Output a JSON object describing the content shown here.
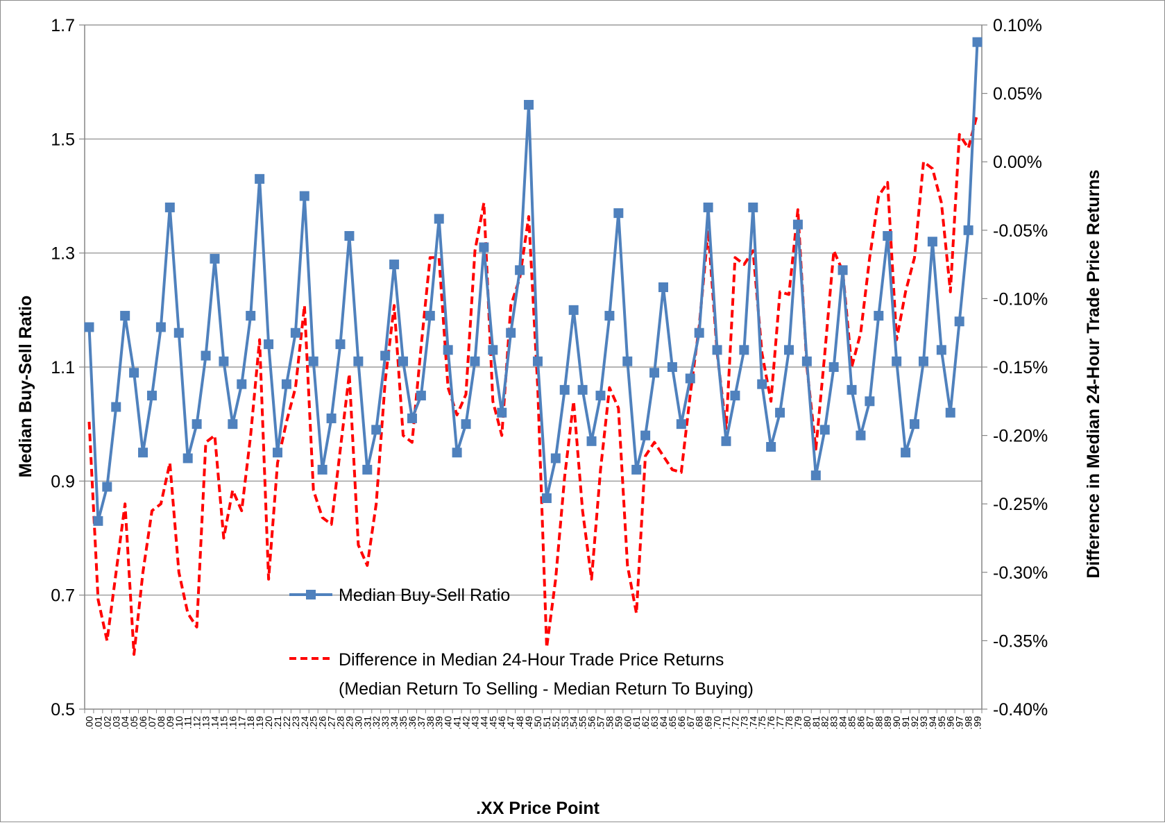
{
  "chart_data": {
    "type": "line",
    "title": "",
    "xlabel": ".XX Price Point",
    "ylabel_left": "Median Buy-Sell Ratio",
    "ylabel_right": "Difference in Median 24-Hour Trade Price Returns",
    "ylim_left": [
      0.5,
      1.7
    ],
    "yticks_left": [
      "0.5",
      "0.7",
      "0.9",
      "1.1",
      "1.3",
      "1.5",
      "1.7"
    ],
    "ylim_right": [
      -0.4,
      0.1
    ],
    "yticks_right": [
      "-0.40%",
      "-0.35%",
      "-0.30%",
      "-0.25%",
      "-0.20%",
      "-0.15%",
      "-0.10%",
      "-0.05%",
      "0.00%",
      "0.05%",
      "0.10%"
    ],
    "categories": [
      ".00",
      ".01",
      ".02",
      ".03",
      ".04",
      ".05",
      ".06",
      ".07",
      ".08",
      ".09",
      ".10",
      ".11",
      ".12",
      ".13",
      ".14",
      ".15",
      ".16",
      ".17",
      ".18",
      ".19",
      ".20",
      ".21",
      ".22",
      ".23",
      ".24",
      ".25",
      ".26",
      ".27",
      ".28",
      ".29",
      ".30",
      ".31",
      ".32",
      ".33",
      ".34",
      ".35",
      ".36",
      ".37",
      ".38",
      ".39",
      ".40",
      ".41",
      ".42",
      ".43",
      ".44",
      ".45",
      ".46",
      ".47",
      ".48",
      ".49",
      ".50",
      ".51",
      ".52",
      ".53",
      ".54",
      ".55",
      ".56",
      ".57",
      ".58",
      ".59",
      ".60",
      ".61",
      ".62",
      ".63",
      ".64",
      ".65",
      ".66",
      ".67",
      ".68",
      ".69",
      ".70",
      ".71",
      ".72",
      ".73",
      ".74",
      ".75",
      ".76",
      ".77",
      ".78",
      ".79",
      ".80",
      ".81",
      ".82",
      ".83",
      ".84",
      ".85",
      ".86",
      ".87",
      ".88",
      ".89",
      ".90",
      ".91",
      ".92",
      ".93",
      ".94",
      ".95",
      ".96",
      ".97",
      ".98",
      ".99"
    ],
    "grid": "horizontal",
    "legend_position": "bottom-center",
    "series": [
      {
        "name": "Median Buy-Sell Ratio",
        "axis": "left",
        "style": "solid-square-markers",
        "color": "#4f81bd",
        "values": [
          1.17,
          0.83,
          0.89,
          1.03,
          1.19,
          1.09,
          0.95,
          1.05,
          1.17,
          1.38,
          1.16,
          0.94,
          1.0,
          1.12,
          1.29,
          1.11,
          1.0,
          1.07,
          1.19,
          1.43,
          1.14,
          0.95,
          1.07,
          1.16,
          1.4,
          1.11,
          0.92,
          1.01,
          1.14,
          1.33,
          1.11,
          0.92,
          0.99,
          1.12,
          1.28,
          1.11,
          1.01,
          1.05,
          1.19,
          1.36,
          1.13,
          0.95,
          1.0,
          1.11,
          1.31,
          1.13,
          1.02,
          1.16,
          1.27,
          1.56,
          1.11,
          0.87,
          0.94,
          1.06,
          1.2,
          1.06,
          0.97,
          1.05,
          1.19,
          1.37,
          1.11,
          0.92,
          0.98,
          1.09,
          1.24,
          1.1,
          1.0,
          1.08,
          1.16,
          1.38,
          1.13,
          0.97,
          1.05,
          1.13,
          1.38,
          1.07,
          0.96,
          1.02,
          1.13,
          1.35,
          1.11,
          0.91,
          0.99,
          1.1,
          1.27,
          1.06,
          0.98,
          1.04,
          1.19,
          1.33,
          1.11,
          0.95,
          1.0,
          1.11,
          1.32,
          1.13,
          1.02,
          1.18,
          1.34,
          1.67
        ]
      },
      {
        "name": "Difference in Median 24-Hour Trade Price Returns",
        "name_line2": "(Median Return To Selling - Median Return To Buying)",
        "axis": "right",
        "unit": "%",
        "style": "dashed",
        "color": "#ff0000",
        "values": [
          -0.19,
          -0.32,
          -0.35,
          -0.3,
          -0.25,
          -0.36,
          -0.3,
          -0.255,
          -0.25,
          -0.22,
          -0.3,
          -0.33,
          -0.34,
          -0.205,
          -0.2,
          -0.275,
          -0.24,
          -0.255,
          -0.2,
          -0.13,
          -0.305,
          -0.22,
          -0.19,
          -0.165,
          -0.105,
          -0.24,
          -0.26,
          -0.265,
          -0.21,
          -0.155,
          -0.28,
          -0.295,
          -0.25,
          -0.16,
          -0.105,
          -0.2,
          -0.205,
          -0.135,
          -0.07,
          -0.07,
          -0.165,
          -0.185,
          -0.17,
          -0.065,
          -0.03,
          -0.175,
          -0.2,
          -0.105,
          -0.085,
          -0.04,
          -0.165,
          -0.355,
          -0.305,
          -0.23,
          -0.175,
          -0.255,
          -0.305,
          -0.225,
          -0.165,
          -0.18,
          -0.295,
          -0.33,
          -0.215,
          -0.205,
          -0.215,
          -0.225,
          -0.227,
          -0.17,
          -0.12,
          -0.05,
          -0.14,
          -0.195,
          -0.07,
          -0.075,
          -0.065,
          -0.14,
          -0.175,
          -0.095,
          -0.097,
          -0.035,
          -0.15,
          -0.21,
          -0.14,
          -0.065,
          -0.08,
          -0.15,
          -0.125,
          -0.07,
          -0.025,
          -0.015,
          -0.13,
          -0.095,
          -0.07,
          -0.0,
          -0.005,
          -0.03,
          -0.095,
          0.02,
          0.01,
          0.035
        ]
      }
    ]
  }
}
